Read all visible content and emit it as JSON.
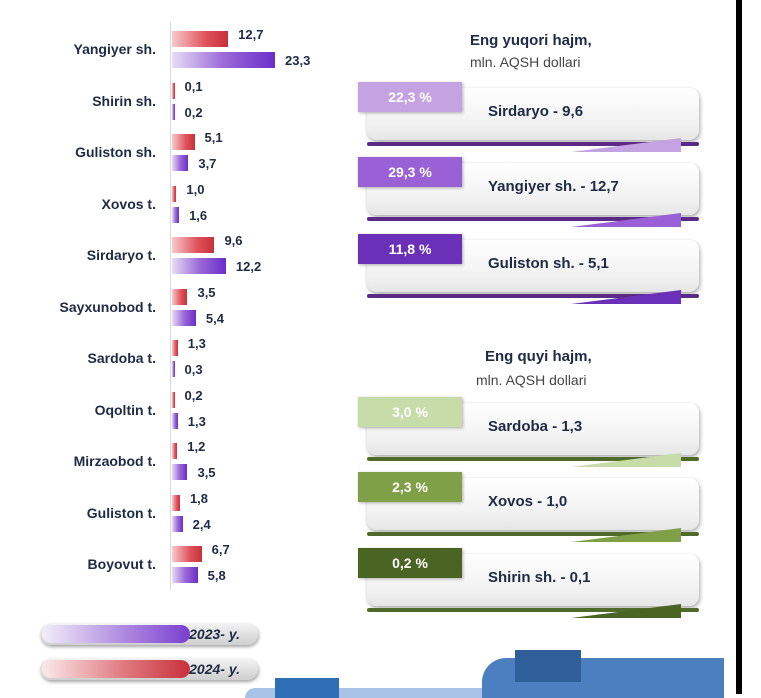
{
  "chart_data": {
    "type": "bar",
    "orientation": "horizontal",
    "categories": [
      "Yangiyer sh.",
      "Shirin sh.",
      "Guliston sh.",
      "Xovos t.",
      "Sirdaryo t.",
      "Sayxunobod t.",
      "Sardoba t.",
      "Oqoltin t.",
      "Mirzaobod t.",
      "Guliston t.",
      "Boyovut t."
    ],
    "series": [
      {
        "name": "2023- y.",
        "values": [
          12.7,
          0.1,
          5.1,
          1.0,
          9.6,
          3.5,
          1.3,
          0.2,
          1.2,
          1.8,
          6.7
        ],
        "labels": [
          "12,7",
          "0,1",
          "5,1",
          "1,0",
          "9,6",
          "3,5",
          "1,3",
          "0,2",
          "1,2",
          "1,8",
          "6,7"
        ]
      },
      {
        "name": "2024- y.",
        "values": [
          23.3,
          0.2,
          3.7,
          1.6,
          12.2,
          5.4,
          0.3,
          1.3,
          3.5,
          2.4,
          5.8
        ],
        "labels": [
          "23,3",
          "0,2",
          "3,7",
          "1,6",
          "12,2",
          "5,4",
          "0,3",
          "1,3",
          "3,5",
          "2,4",
          "5,8"
        ]
      }
    ],
    "legend": [
      "2023- y.",
      "2024- y."
    ],
    "legend_position": "bottom-left"
  },
  "colors": {
    "series_2023": "#d9434d",
    "series_2024": "#7a3fd0",
    "top_theme": "#5a2a86",
    "bottom_theme": "#4f6b2a"
  },
  "top_panel": {
    "title": "Eng yuqori hajm,",
    "subtitle": "mln. AQSH dollari",
    "items": [
      {
        "badge": "22,3 %",
        "text": "Sirdaryo - 9,6",
        "color": "#c5a3e3"
      },
      {
        "badge": "29,3 %",
        "text": "Yangiyer sh. - 12,7",
        "color": "#9a61d6"
      },
      {
        "badge": "11,8 %",
        "text": "Guliston sh. - 5,1",
        "color": "#6a31b8"
      }
    ]
  },
  "bottom_panel": {
    "title": "Eng quyi hajm,",
    "subtitle": "mln. AQSH dollari",
    "items": [
      {
        "badge": "3,0 %",
        "text": "Sardoba -  1,3",
        "color": "#c8dcaa"
      },
      {
        "badge": "2,3 %",
        "text": "Xovos - 1,0",
        "color": "#7fa046"
      },
      {
        "badge": "0,2 %",
        "text": "Shirin sh. - 0,1",
        "color": "#4a6424"
      }
    ]
  }
}
